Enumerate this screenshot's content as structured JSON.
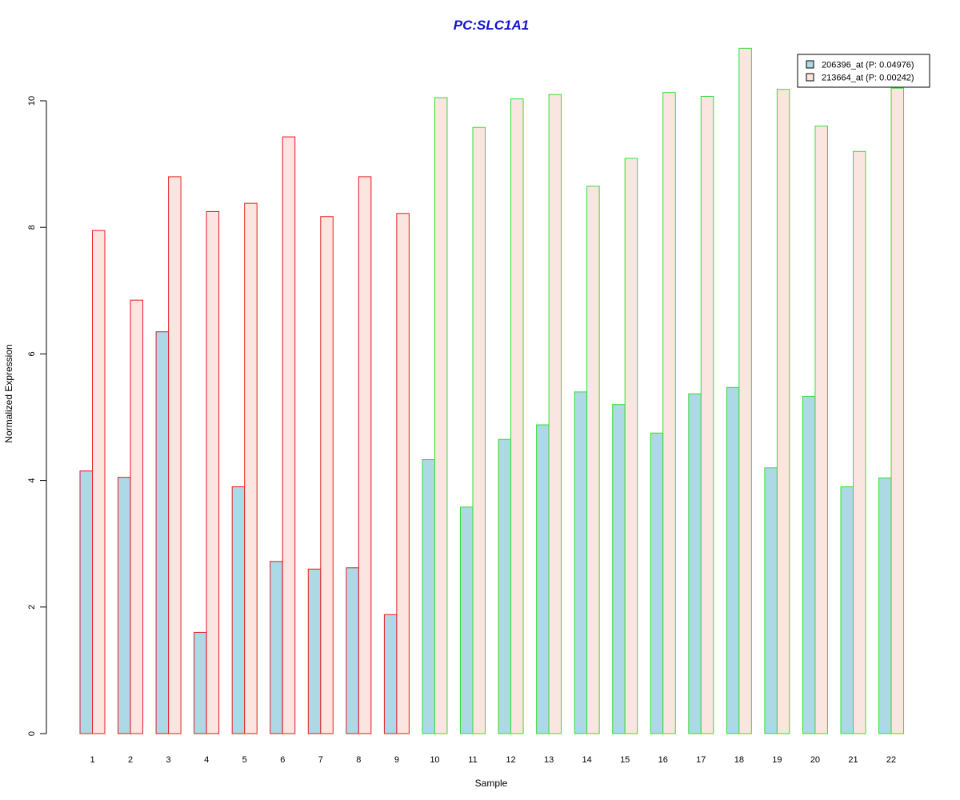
{
  "chart_data": {
    "type": "bar",
    "title": "PC:SLC1A1",
    "xlabel": "Sample",
    "ylabel": "Normalized Expression",
    "categories": [
      "1",
      "2",
      "3",
      "4",
      "5",
      "6",
      "7",
      "8",
      "9",
      "10",
      "11",
      "12",
      "13",
      "14",
      "15",
      "16",
      "17",
      "18",
      "19",
      "20",
      "21",
      "22"
    ],
    "yticks": [
      "0",
      "2",
      "4",
      "6",
      "8",
      "10"
    ],
    "ylim": [
      0,
      11
    ],
    "grid": false,
    "legend_position": "top-right",
    "series": [
      {
        "name": "206396_at (P: 0.04976)",
        "fill": "#add8e6",
        "values": [
          4.15,
          4.05,
          6.35,
          1.6,
          3.9,
          2.72,
          2.6,
          2.62,
          1.88,
          4.33,
          3.58,
          4.65,
          4.88,
          5.4,
          5.2,
          4.75,
          5.37,
          5.47,
          4.2,
          5.33,
          3.9,
          4.04
        ]
      },
      {
        "name": "213664_at (P: 0.00242)",
        "fill": "#fbe5e0",
        "values": [
          7.95,
          6.85,
          8.8,
          8.25,
          8.38,
          9.43,
          8.17,
          8.8,
          8.22,
          10.05,
          9.58,
          10.03,
          10.1,
          8.65,
          9.09,
          10.13,
          10.07,
          10.83,
          10.18,
          9.6,
          9.2,
          10.2
        ]
      }
    ],
    "group_borders": [
      "#e41a1c",
      "#e41a1c",
      "#e41a1c",
      "#e41a1c",
      "#e41a1c",
      "#e41a1c",
      "#e41a1c",
      "#e41a1c",
      "#e41a1c",
      "#33dd33",
      "#33dd33",
      "#33dd33",
      "#33dd33",
      "#33dd33",
      "#33dd33",
      "#33dd33",
      "#33dd33",
      "#33dd33",
      "#33dd33",
      "#33dd33",
      "#33dd33",
      "#33dd33"
    ],
    "title_color": "#1414d2"
  }
}
